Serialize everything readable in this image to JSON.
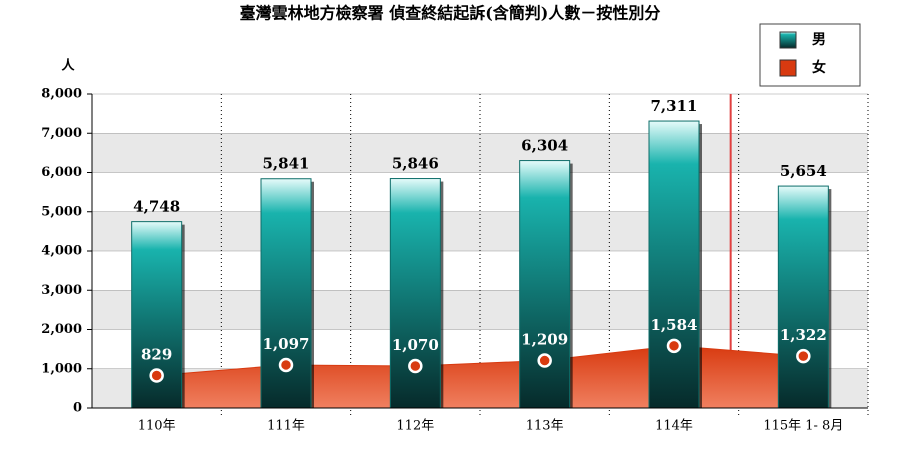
{
  "chart_data": {
    "type": "bar-area",
    "title": "臺灣雲林地方檢察署 偵查終結起訴(含簡判)人數－按性別分",
    "y_label": "人",
    "categories": [
      "110年",
      "111年",
      "112年",
      "113年",
      "114年",
      "115年 1- 8月"
    ],
    "series": [
      {
        "name": "男",
        "color": "#19b3ad",
        "values": [
          4748,
          5841,
          5846,
          6304,
          7311,
          5654
        ],
        "value_labels": [
          "4,748",
          "5,841",
          "5,846",
          "6,304",
          "7,311",
          "5,654"
        ]
      },
      {
        "name": "女",
        "color": "#d83a10",
        "values": [
          829,
          1097,
          1070,
          1209,
          1584,
          1322
        ],
        "value_labels": [
          "829",
          "1,097",
          "1,070",
          "1,209",
          "1,584",
          "1,322"
        ]
      }
    ],
    "ylim": [
      0,
      8000
    ],
    "yticks": [
      {
        "value": 0,
        "label": "0"
      },
      {
        "value": 1000,
        "label": "1,000"
      },
      {
        "value": 2000,
        "label": "2,000"
      },
      {
        "value": 3000,
        "label": "3,000"
      },
      {
        "value": 4000,
        "label": "4,000"
      },
      {
        "value": 5000,
        "label": "5,000"
      },
      {
        "value": 6000,
        "label": "6,000"
      },
      {
        "value": 7000,
        "label": "7,000"
      },
      {
        "value": 8000,
        "label": "8,000"
      }
    ],
    "grid": true,
    "legend": "top-right"
  }
}
